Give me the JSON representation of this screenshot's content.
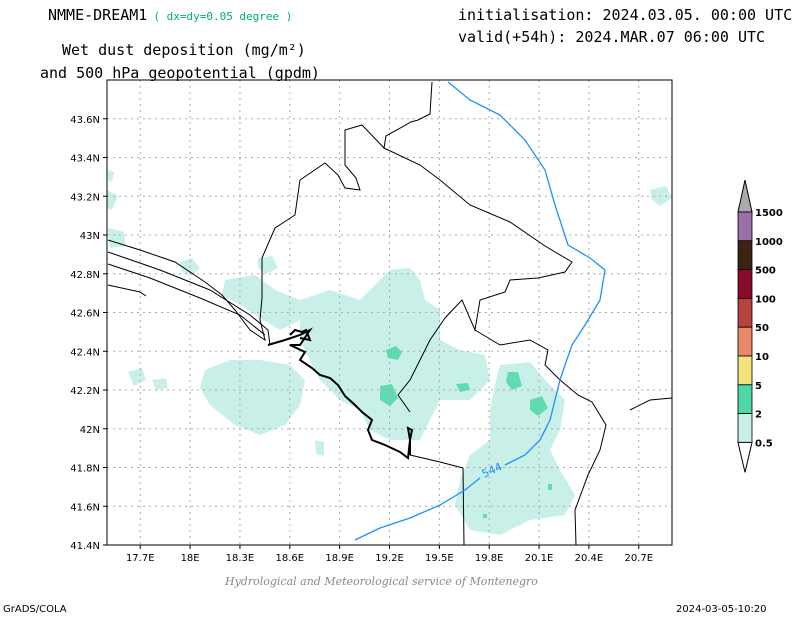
{
  "header": {
    "model_name": "NMME-DREAM1",
    "resolution": "( dx=dy=0.05 degree )",
    "variable_line1": "Wet dust deposition (mg/m²)",
    "variable_line2": "and 500 hPa geopotential (gpdm)",
    "initialisation": "initialisation: 2024.03.05. 00:00 UTC",
    "valid": "valid(+54h): 2024.MAR.07 06:00 UTC"
  },
  "map": {
    "lon_range": [
      17.5,
      20.9
    ],
    "lat_range": [
      41.4,
      43.8
    ],
    "lon_ticks": [
      "17.7E",
      "18E",
      "18.3E",
      "18.6E",
      "18.9E",
      "19.2E",
      "19.5E",
      "19.8E",
      "20.1E",
      "20.4E",
      "20.7E"
    ],
    "lon_tick_values": [
      17.7,
      18.0,
      18.3,
      18.6,
      18.9,
      19.2,
      19.5,
      19.8,
      20.1,
      20.4,
      20.7
    ],
    "lat_ticks": [
      "41.4N",
      "41.6N",
      "41.8N",
      "42N",
      "42.2N",
      "42.4N",
      "42.6N",
      "42.8N",
      "43N",
      "43.2N",
      "43.4N",
      "43.6N"
    ],
    "lat_tick_values": [
      41.4,
      41.6,
      41.8,
      42.0,
      42.2,
      42.4,
      42.6,
      42.8,
      43.0,
      43.2,
      43.4,
      43.6
    ],
    "grid": true,
    "contour_label": "544",
    "contour_color": "#1e90ff",
    "land_border_color": "#000000"
  },
  "colorbar": {
    "labels": [
      "1500",
      "1000",
      "500",
      "100",
      "50",
      "10",
      "5",
      "2",
      "0.5"
    ],
    "colors": [
      "#9b6fa8",
      "#3b2416",
      "#8a0a2a",
      "#b5443f",
      "#e98968",
      "#f2e27a",
      "#4fd8a6",
      "#c8f0e8"
    ]
  },
  "credit": "Hydrological and Meteorological service of Montenegro",
  "footer": {
    "left": "GrADS/COLA",
    "right": "2024-03-05-10:20"
  }
}
